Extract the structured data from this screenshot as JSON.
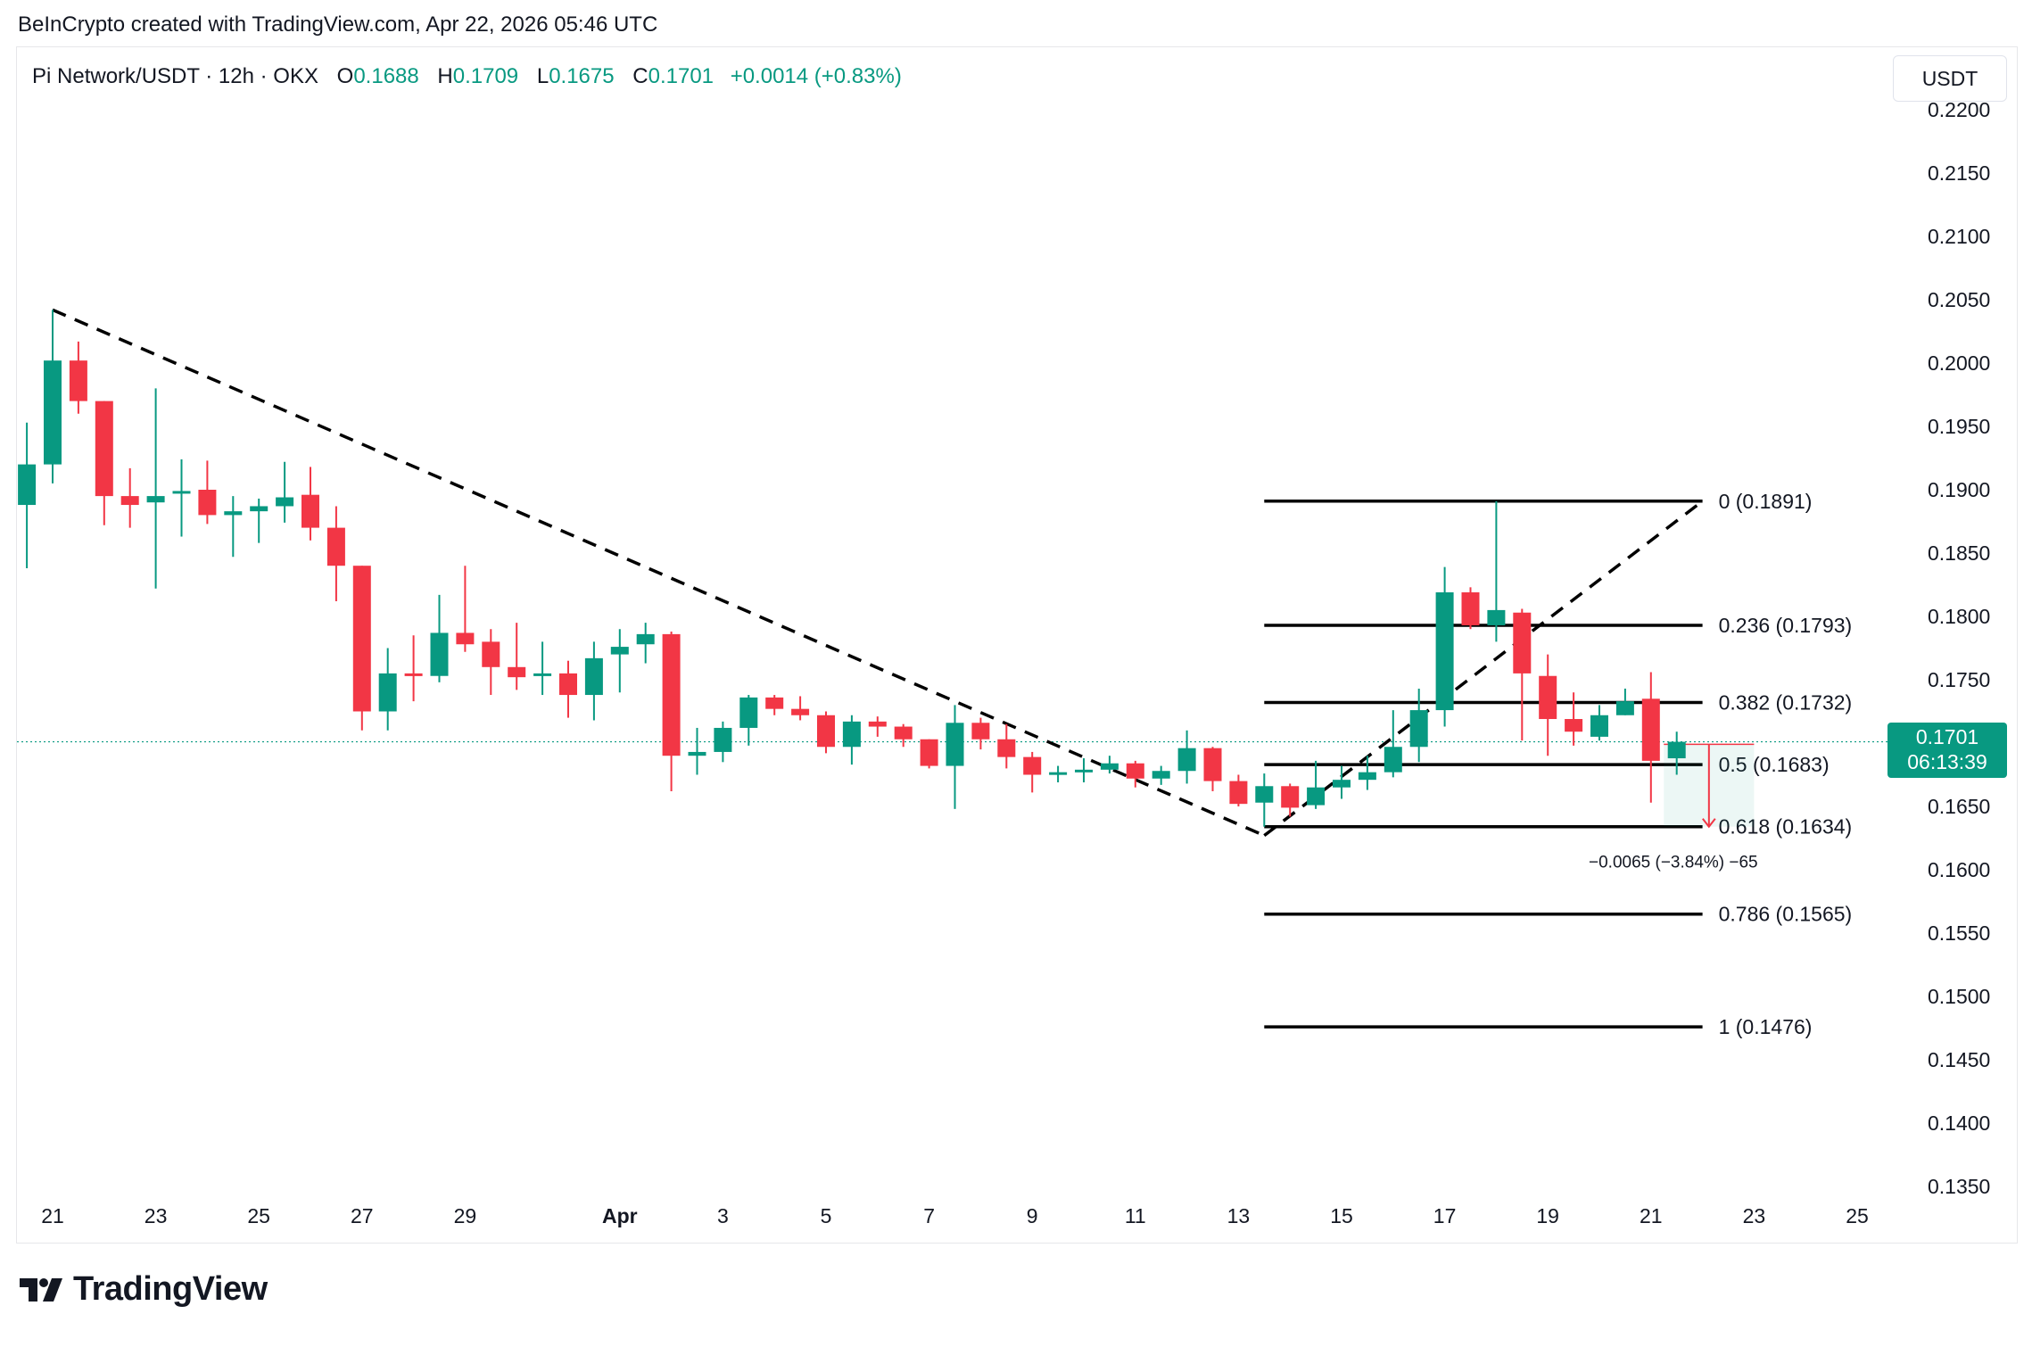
{
  "header": {
    "text": "BeInCrypto created with TradingView.com, Apr 22, 2026 05:46 UTC"
  },
  "legend": {
    "symbol": "Pi Network/USDT · 12h · OKX",
    "open_label": "O",
    "open": "0.1688",
    "high_label": "H",
    "high": "0.1709",
    "low_label": "L",
    "low": "0.1675",
    "close_label": "C",
    "close": "0.1701",
    "change": "+0.0014 (+0.83%)"
  },
  "currency": "USDT",
  "price_tag": {
    "price": "0.1701",
    "countdown": "06:13:39"
  },
  "footer": {
    "brand": "TradingView"
  },
  "colors": {
    "up": "#089981",
    "down": "#f23645",
    "text": "#131722",
    "fib_line": "#000000"
  },
  "chart_data": {
    "type": "candlestick",
    "ylim": [
      0.1325,
      0.2225
    ],
    "y_ticks": [
      "0.1350",
      "0.1400",
      "0.1450",
      "0.1500",
      "0.1550",
      "0.1600",
      "0.1650",
      "0.1700",
      "0.1750",
      "0.1800",
      "0.1850",
      "0.1900",
      "0.1950",
      "0.2000",
      "0.2050",
      "0.2100",
      "0.2150",
      "0.2200"
    ],
    "x_ticks": [
      "21",
      "23",
      "25",
      "27",
      "29",
      "Apr",
      "3",
      "5",
      "7",
      "9",
      "11",
      "13",
      "15",
      "17",
      "19",
      "21",
      "23",
      "25"
    ],
    "x_tick_days": [
      0,
      2,
      4,
      6,
      8,
      11,
      13,
      15,
      17,
      19,
      21,
      23,
      25,
      27,
      29,
      31,
      33,
      35
    ],
    "candles": [
      {
        "d": -0.5,
        "o": 0.1888,
        "h": 0.1953,
        "l": 0.1838,
        "c": 0.192
      },
      {
        "d": 0.0,
        "o": 0.192,
        "h": 0.2042,
        "l": 0.1905,
        "c": 0.2002
      },
      {
        "d": 0.5,
        "o": 0.2002,
        "h": 0.2017,
        "l": 0.196,
        "c": 0.197
      },
      {
        "d": 1.0,
        "o": 0.197,
        "h": 0.197,
        "l": 0.1872,
        "c": 0.1895
      },
      {
        "d": 1.5,
        "o": 0.1895,
        "h": 0.1917,
        "l": 0.187,
        "c": 0.1888
      },
      {
        "d": 2.0,
        "o": 0.189,
        "h": 0.198,
        "l": 0.1822,
        "c": 0.1895
      },
      {
        "d": 2.5,
        "o": 0.1897,
        "h": 0.1924,
        "l": 0.1863,
        "c": 0.1899
      },
      {
        "d": 3.0,
        "o": 0.19,
        "h": 0.1923,
        "l": 0.1873,
        "c": 0.188
      },
      {
        "d": 3.5,
        "o": 0.188,
        "h": 0.1895,
        "l": 0.1847,
        "c": 0.1883
      },
      {
        "d": 4.0,
        "o": 0.1883,
        "h": 0.1893,
        "l": 0.1858,
        "c": 0.1887
      },
      {
        "d": 4.5,
        "o": 0.1887,
        "h": 0.1922,
        "l": 0.1874,
        "c": 0.1894
      },
      {
        "d": 5.0,
        "o": 0.1896,
        "h": 0.1918,
        "l": 0.186,
        "c": 0.187
      },
      {
        "d": 5.5,
        "o": 0.187,
        "h": 0.1887,
        "l": 0.1812,
        "c": 0.184
      },
      {
        "d": 6.0,
        "o": 0.184,
        "h": 0.184,
        "l": 0.171,
        "c": 0.1725
      },
      {
        "d": 6.5,
        "o": 0.1725,
        "h": 0.1775,
        "l": 0.171,
        "c": 0.1755
      },
      {
        "d": 7.0,
        "o": 0.1755,
        "h": 0.1785,
        "l": 0.1733,
        "c": 0.1753
      },
      {
        "d": 7.5,
        "o": 0.1753,
        "h": 0.1817,
        "l": 0.1748,
        "c": 0.1787
      },
      {
        "d": 8.0,
        "o": 0.1787,
        "h": 0.184,
        "l": 0.1772,
        "c": 0.1778
      },
      {
        "d": 8.5,
        "o": 0.178,
        "h": 0.179,
        "l": 0.1738,
        "c": 0.176
      },
      {
        "d": 9.0,
        "o": 0.176,
        "h": 0.1795,
        "l": 0.1742,
        "c": 0.1752
      },
      {
        "d": 9.5,
        "o": 0.1755,
        "h": 0.178,
        "l": 0.1738,
        "c": 0.1755
      },
      {
        "d": 10.0,
        "o": 0.1755,
        "h": 0.1765,
        "l": 0.172,
        "c": 0.1738
      },
      {
        "d": 10.5,
        "o": 0.1738,
        "h": 0.178,
        "l": 0.1718,
        "c": 0.1767
      },
      {
        "d": 11.0,
        "o": 0.177,
        "h": 0.179,
        "l": 0.174,
        "c": 0.1776
      },
      {
        "d": 11.5,
        "o": 0.1778,
        "h": 0.1795,
        "l": 0.1763,
        "c": 0.1786
      },
      {
        "d": 12.0,
        "o": 0.1786,
        "h": 0.1788,
        "l": 0.1662,
        "c": 0.169
      },
      {
        "d": 12.5,
        "o": 0.169,
        "h": 0.1712,
        "l": 0.1675,
        "c": 0.1693
      },
      {
        "d": 13.0,
        "o": 0.1693,
        "h": 0.1717,
        "l": 0.1685,
        "c": 0.1712
      },
      {
        "d": 13.5,
        "o": 0.1712,
        "h": 0.1738,
        "l": 0.1698,
        "c": 0.1736
      },
      {
        "d": 14.0,
        "o": 0.1736,
        "h": 0.1738,
        "l": 0.1722,
        "c": 0.1727
      },
      {
        "d": 14.5,
        "o": 0.1727,
        "h": 0.1737,
        "l": 0.1718,
        "c": 0.1722
      },
      {
        "d": 15.0,
        "o": 0.1722,
        "h": 0.1725,
        "l": 0.1692,
        "c": 0.1697
      },
      {
        "d": 15.5,
        "o": 0.1697,
        "h": 0.1722,
        "l": 0.1683,
        "c": 0.1717
      },
      {
        "d": 16.0,
        "o": 0.1717,
        "h": 0.1721,
        "l": 0.1705,
        "c": 0.1713
      },
      {
        "d": 16.5,
        "o": 0.1713,
        "h": 0.1715,
        "l": 0.1697,
        "c": 0.1703
      },
      {
        "d": 17.0,
        "o": 0.1703,
        "h": 0.1703,
        "l": 0.168,
        "c": 0.1682
      },
      {
        "d": 17.5,
        "o": 0.1682,
        "h": 0.173,
        "l": 0.1648,
        "c": 0.1716
      },
      {
        "d": 18.0,
        "o": 0.1716,
        "h": 0.172,
        "l": 0.1695,
        "c": 0.1703
      },
      {
        "d": 18.5,
        "o": 0.1703,
        "h": 0.1715,
        "l": 0.168,
        "c": 0.1689
      },
      {
        "d": 19.0,
        "o": 0.1689,
        "h": 0.1693,
        "l": 0.1661,
        "c": 0.1675
      },
      {
        "d": 19.5,
        "o": 0.1675,
        "h": 0.1682,
        "l": 0.1669,
        "c": 0.1677
      },
      {
        "d": 20.0,
        "o": 0.1677,
        "h": 0.1688,
        "l": 0.1669,
        "c": 0.1679
      },
      {
        "d": 20.5,
        "o": 0.1679,
        "h": 0.169,
        "l": 0.1676,
        "c": 0.1684
      },
      {
        "d": 21.0,
        "o": 0.1684,
        "h": 0.1686,
        "l": 0.1665,
        "c": 0.1672
      },
      {
        "d": 21.5,
        "o": 0.1672,
        "h": 0.1682,
        "l": 0.1667,
        "c": 0.1678
      },
      {
        "d": 22.0,
        "o": 0.1678,
        "h": 0.171,
        "l": 0.1668,
        "c": 0.1696
      },
      {
        "d": 22.5,
        "o": 0.1696,
        "h": 0.1697,
        "l": 0.1662,
        "c": 0.167
      },
      {
        "d": 23.0,
        "o": 0.167,
        "h": 0.1675,
        "l": 0.165,
        "c": 0.1652
      },
      {
        "d": 23.5,
        "o": 0.1653,
        "h": 0.1676,
        "l": 0.1634,
        "c": 0.1666
      },
      {
        "d": 24.0,
        "o": 0.1666,
        "h": 0.1668,
        "l": 0.1642,
        "c": 0.1649
      },
      {
        "d": 24.5,
        "o": 0.1651,
        "h": 0.1686,
        "l": 0.1648,
        "c": 0.1665
      },
      {
        "d": 25.0,
        "o": 0.1665,
        "h": 0.1682,
        "l": 0.1656,
        "c": 0.1671
      },
      {
        "d": 25.5,
        "o": 0.1671,
        "h": 0.169,
        "l": 0.1663,
        "c": 0.1677
      },
      {
        "d": 26.0,
        "o": 0.1677,
        "h": 0.1726,
        "l": 0.1673,
        "c": 0.1697
      },
      {
        "d": 26.5,
        "o": 0.1697,
        "h": 0.1743,
        "l": 0.1685,
        "c": 0.1726
      },
      {
        "d": 27.0,
        "o": 0.1726,
        "h": 0.1839,
        "l": 0.1713,
        "c": 0.1819
      },
      {
        "d": 27.5,
        "o": 0.1819,
        "h": 0.1823,
        "l": 0.179,
        "c": 0.1793
      },
      {
        "d": 28.0,
        "o": 0.1793,
        "h": 0.1891,
        "l": 0.178,
        "c": 0.1805
      },
      {
        "d": 28.5,
        "o": 0.1803,
        "h": 0.1806,
        "l": 0.1702,
        "c": 0.1755
      },
      {
        "d": 29.0,
        "o": 0.1753,
        "h": 0.177,
        "l": 0.169,
        "c": 0.1719
      },
      {
        "d": 29.5,
        "o": 0.1719,
        "h": 0.174,
        "l": 0.1698,
        "c": 0.1709
      },
      {
        "d": 30.0,
        "o": 0.1705,
        "h": 0.173,
        "l": 0.1702,
        "c": 0.1722
      },
      {
        "d": 30.5,
        "o": 0.1722,
        "h": 0.1743,
        "l": 0.1722,
        "c": 0.1733
      },
      {
        "d": 31.0,
        "o": 0.1735,
        "h": 0.1756,
        "l": 0.1653,
        "c": 0.1686
      },
      {
        "d": 31.5,
        "o": 0.1688,
        "h": 0.1709,
        "l": 0.1675,
        "c": 0.1701
      }
    ],
    "fib_levels": [
      {
        "label": "0 (0.1891)",
        "value": 0.1891
      },
      {
        "label": "0.236 (0.1793)",
        "value": 0.1793
      },
      {
        "label": "0.382 (0.1732)",
        "value": 0.1732
      },
      {
        "label": "0.5 (0.1683)",
        "value": 0.1683
      },
      {
        "label": "0.618 (0.1634)",
        "value": 0.1634
      },
      {
        "label": "0.786 (0.1565)",
        "value": 0.1565
      },
      {
        "label": "1 (0.1476)",
        "value": 0.1476
      }
    ],
    "fib_range_days": [
      23.5,
      32.0
    ],
    "trendline_down": {
      "from": {
        "d": 0.0,
        "v": 0.2042
      },
      "to": {
        "d": 23.5,
        "v": 0.1627
      }
    },
    "trendline_up": {
      "from": {
        "d": 23.5,
        "v": 0.1627
      },
      "to": {
        "d": 32.0,
        "v": 0.1891
      }
    },
    "measure": {
      "label": "−0.0065 (−3.84%) −65",
      "from_v": 0.1699,
      "to_v": 0.1634,
      "d_from": 31.25,
      "d_to": 33.0
    },
    "last_price": 0.1701
  }
}
